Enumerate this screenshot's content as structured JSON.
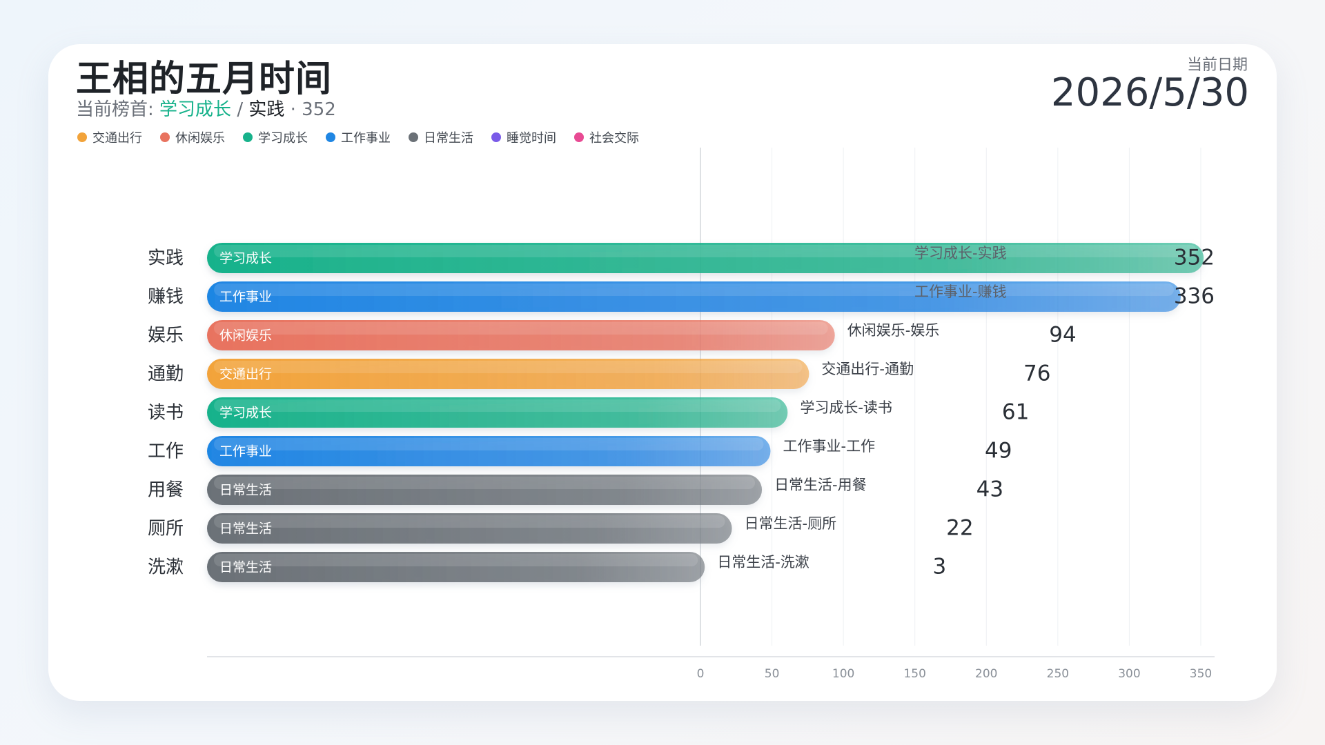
{
  "header": {
    "title": "王相的五月时间",
    "leader_prefix": "当前榜首:",
    "leader_category": "学习成长",
    "leader_sep": "/",
    "leader_item": "实践",
    "leader_value": "· 352",
    "date_label": "当前日期",
    "date_value": "2026/5/30"
  },
  "legend": [
    {
      "label": "交通出行",
      "color": "#f2a33a"
    },
    {
      "label": "休闲娱乐",
      "color": "#e8735f"
    },
    {
      "label": "学习成长",
      "color": "#17b28b"
    },
    {
      "label": "工作事业",
      "color": "#1f86e3"
    },
    {
      "label": "日常生活",
      "color": "#6b7177"
    },
    {
      "label": "睡觉时间",
      "color": "#7a5be8"
    },
    {
      "label": "社会交际",
      "color": "#e84a93"
    }
  ],
  "chart_data": {
    "type": "bar",
    "orientation": "horizontal",
    "title": "王相的五月时间",
    "xlim": [
      0,
      350
    ],
    "xticks": [
      0,
      50,
      100,
      150,
      200,
      250,
      300,
      350
    ],
    "grid": true,
    "categories": [
      "实践",
      "赚钱",
      "娱乐",
      "通勤",
      "读书",
      "工作",
      "用餐",
      "厕所",
      "洗漱"
    ],
    "bars": [
      {
        "item": "实践",
        "category": "学习成长",
        "label": "学习成长-实践",
        "value": 352,
        "color": "#17b28b"
      },
      {
        "item": "赚钱",
        "category": "工作事业",
        "label": "工作事业-赚钱",
        "value": 336,
        "color": "#1f86e3"
      },
      {
        "item": "娱乐",
        "category": "休闲娱乐",
        "label": "休闲娱乐-娱乐",
        "value": 94,
        "color": "#e8735f"
      },
      {
        "item": "通勤",
        "category": "交通出行",
        "label": "交通出行-通勤",
        "value": 76,
        "color": "#f2a33a"
      },
      {
        "item": "读书",
        "category": "学习成长",
        "label": "学习成长-读书",
        "value": 61,
        "color": "#17b28b"
      },
      {
        "item": "工作",
        "category": "工作事业",
        "label": "工作事业-工作",
        "value": 49,
        "color": "#1f86e3"
      },
      {
        "item": "用餐",
        "category": "日常生活",
        "label": "日常生活-用餐",
        "value": 43,
        "color": "#6b7177"
      },
      {
        "item": "厕所",
        "category": "日常生活",
        "label": "日常生活-厕所",
        "value": 22,
        "color": "#6b7177"
      },
      {
        "item": "洗漱",
        "category": "日常生活",
        "label": "日常生活-洗漱",
        "value": 3,
        "color": "#6b7177"
      }
    ]
  }
}
